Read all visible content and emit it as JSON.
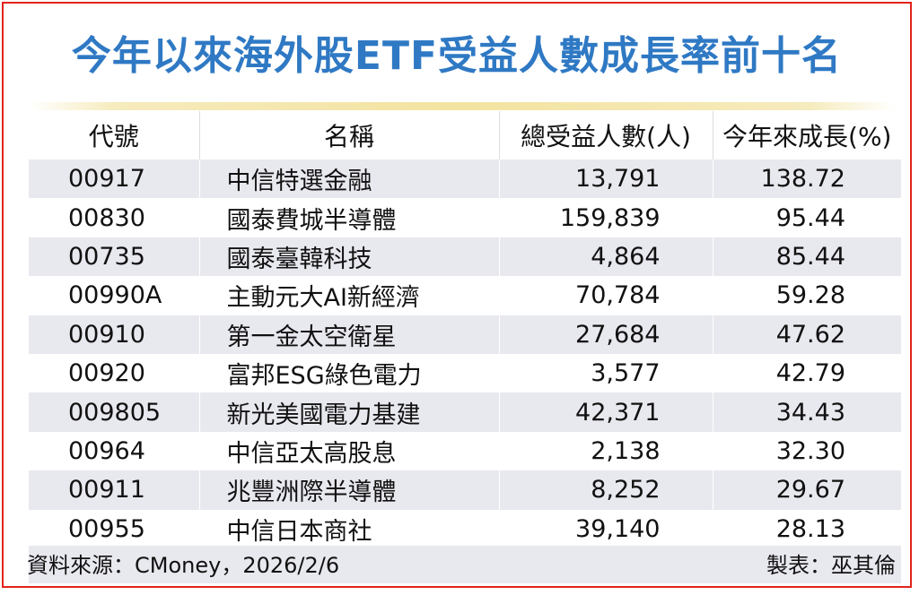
{
  "title": "今年以來海外股ETF受益人數成長率前十名",
  "chart_data": {
    "type": "table",
    "title": "今年以來海外股ETF受益人數成長率前十名",
    "columns": [
      "代號",
      "名稱",
      "總受益人數(人)",
      "今年來成長(%)"
    ],
    "rows": [
      {
        "code": "00917",
        "name": "中信特選金融",
        "holders": "13,791",
        "growth": "138.72"
      },
      {
        "code": "00830",
        "name": "國泰費城半導體",
        "holders": "159,839",
        "growth": "95.44"
      },
      {
        "code": "00735",
        "name": "國泰臺韓科技",
        "holders": "4,864",
        "growth": "85.44"
      },
      {
        "code": "00990A",
        "name": "主動元大AI新經濟",
        "holders": "70,784",
        "growth": "59.28"
      },
      {
        "code": "00910",
        "name": "第一金太空衛星",
        "holders": "27,684",
        "growth": "47.62"
      },
      {
        "code": "00920",
        "name": "富邦ESG綠色電力",
        "holders": "3,577",
        "growth": "42.79"
      },
      {
        "code": "009805",
        "name": "新光美國電力基建",
        "holders": "42,371",
        "growth": "34.43"
      },
      {
        "code": "00964",
        "name": "中信亞太高股息",
        "holders": "2,138",
        "growth": "32.30"
      },
      {
        "code": "00911",
        "name": "兆豐洲際半導體",
        "holders": "8,252",
        "growth": "29.67"
      },
      {
        "code": "00955",
        "name": "中信日本商社",
        "holders": "39,140",
        "growth": "28.13"
      }
    ]
  },
  "footer": {
    "source": "資料來源：CMoney，2026/2/6",
    "maker": "製表：巫其倫"
  },
  "colors": {
    "title": "#2f79c4",
    "border": "#e2231a",
    "stripe": "#e8e8ef",
    "title_bar": "#f3e3a0"
  }
}
